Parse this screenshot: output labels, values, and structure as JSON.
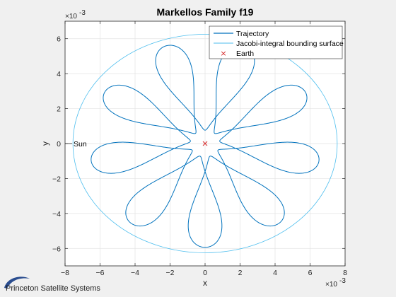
{
  "chart_data": {
    "type": "line",
    "title": "Markellos Family f19",
    "xlabel": "x",
    "ylabel": "y",
    "x_exponent": "-3",
    "y_exponent": "-3",
    "xlim": [
      -8,
      8
    ],
    "ylim": [
      -7,
      7
    ],
    "xticks": [
      -8,
      -6,
      -4,
      -2,
      0,
      2,
      4,
      6,
      8
    ],
    "yticks": [
      -6,
      -4,
      -2,
      0,
      2,
      4,
      6
    ],
    "grid": true,
    "legend_placement": "top-right",
    "series": [
      {
        "name": "Trajectory",
        "kind": "rosette",
        "lobes": 9,
        "r_max": 6.6,
        "r_min": 0.85,
        "color": "#0072bd"
      },
      {
        "name": "Jacobi-integral bounding surface",
        "kind": "ellipse",
        "rx": 7.55,
        "ry": 6.25,
        "color": "#4dbeee"
      },
      {
        "name": "Earth",
        "kind": "marker",
        "x": 0,
        "y": 0,
        "marker": "x",
        "color": "#d62728"
      }
    ],
    "annotations": [
      {
        "text": "Sun",
        "x": -8,
        "y": 0
      }
    ]
  },
  "footer": {
    "brand": "Princeton Satellite Systems"
  }
}
